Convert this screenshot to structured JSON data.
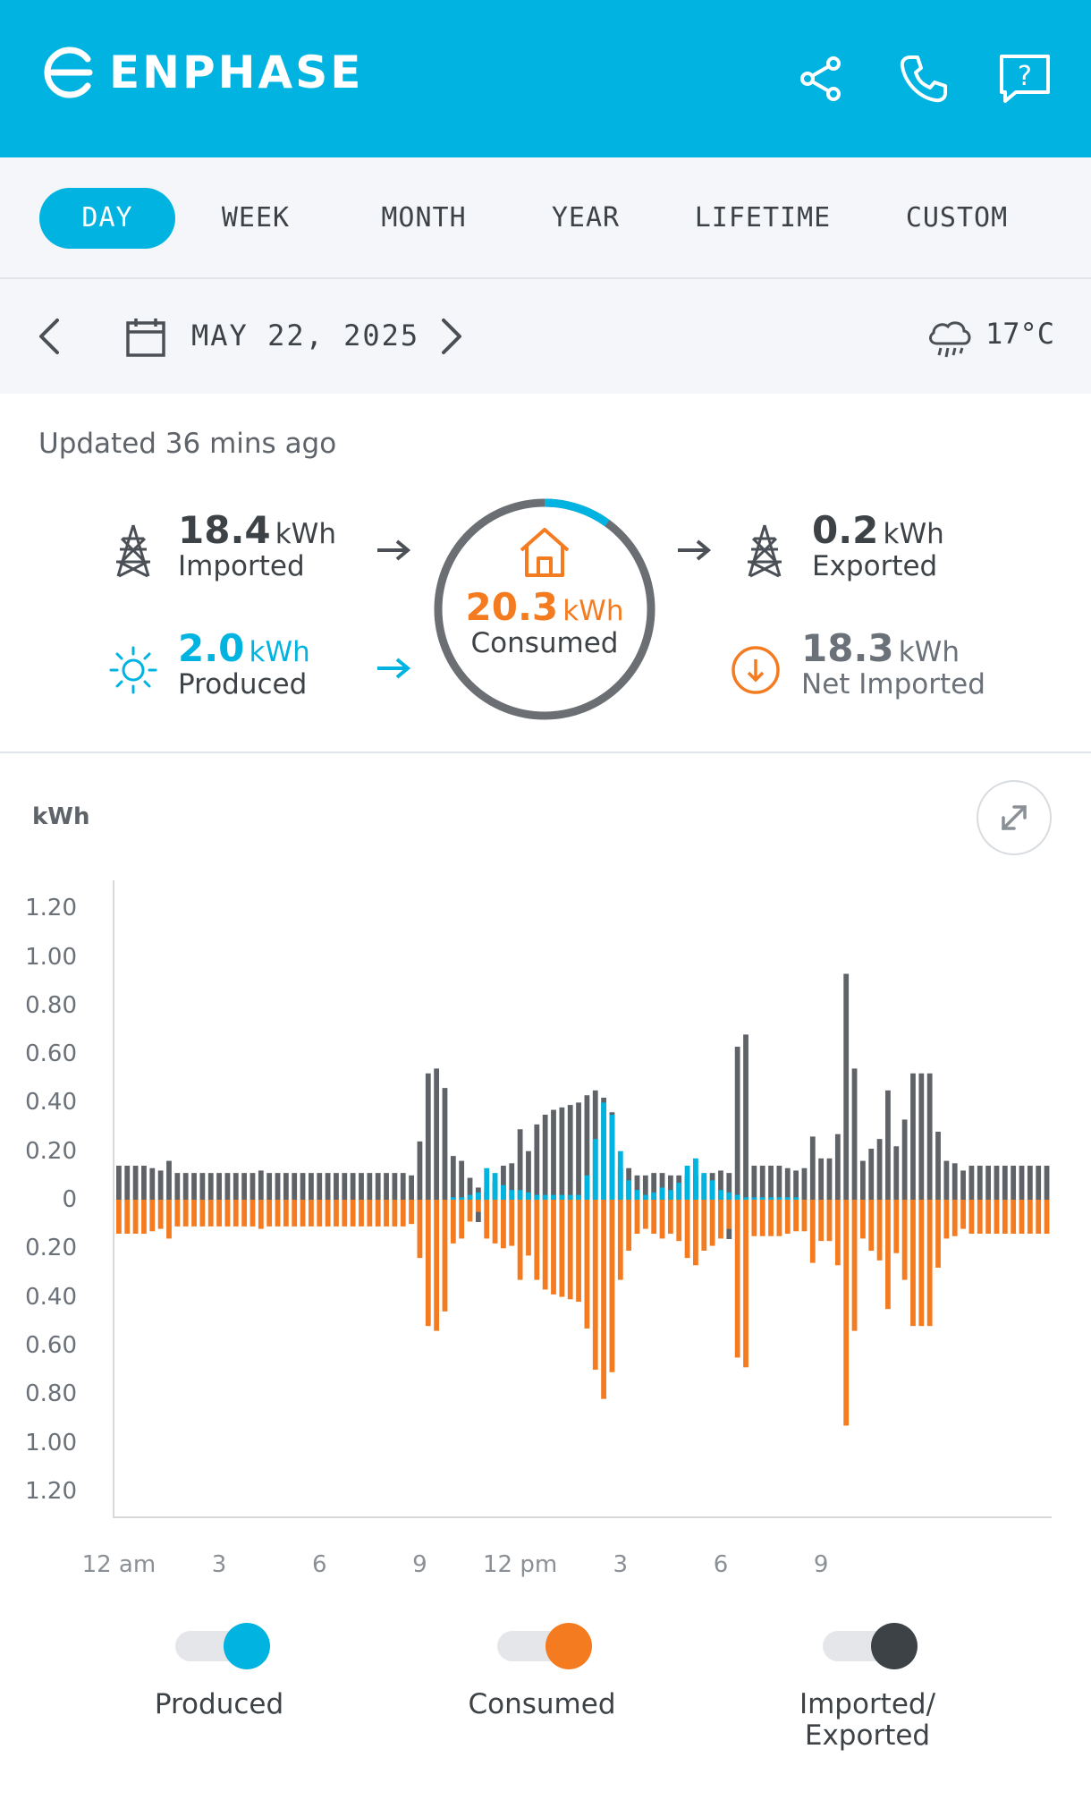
{
  "header": {
    "brand": "ENPHASE"
  },
  "tabs": [
    {
      "label": "DAY",
      "active": true
    },
    {
      "label": "WEEK"
    },
    {
      "label": "MONTH"
    },
    {
      "label": "YEAR"
    },
    {
      "label": "LIFETIME"
    },
    {
      "label": "CUSTOM"
    }
  ],
  "date_row": {
    "date": "MAY 22, 2025",
    "temperature": "17°C",
    "weather_icon": "rain-cloud-icon"
  },
  "summary": {
    "updated": "Updated 36 mins ago",
    "imported": {
      "value": "18.4",
      "unit": "kWh",
      "label": "Imported"
    },
    "produced": {
      "value": "2.0",
      "unit": "kWh",
      "label": "Produced"
    },
    "consumed": {
      "value": "20.3",
      "unit": "kWh",
      "label": "Consumed",
      "solar_fraction": 0.1
    },
    "exported": {
      "value": "0.2",
      "unit": "kWh",
      "label": "Exported"
    },
    "net_imported": {
      "value": "18.3",
      "unit": "kWh",
      "label": "Net Imported"
    }
  },
  "colors": {
    "accent": "#00b3e0",
    "produced": "#00b3e0",
    "consumed": "#f47b20",
    "imported": "#5f6368"
  },
  "chart_data": {
    "type": "bar",
    "ylabel": "kWh",
    "y_ticks_up": [
      "1.20",
      "1.00",
      "0.80",
      "0.60",
      "0.40",
      "0.20",
      "0"
    ],
    "y_ticks_down": [
      "0.20",
      "0.40",
      "0.60",
      "0.80",
      "1.00",
      "1.20"
    ],
    "ylim": [
      -1.2,
      1.2
    ],
    "x_ticks": [
      "12 am",
      "3",
      "6",
      "9",
      "12 pm",
      "3",
      "6",
      "9"
    ],
    "interval_minutes": 15,
    "imported": [
      0.14,
      0.14,
      0.14,
      0.14,
      0.13,
      0.12,
      0.16,
      0.11,
      0.11,
      0.11,
      0.11,
      0.11,
      0.11,
      0.11,
      0.11,
      0.11,
      0.11,
      0.12,
      0.11,
      0.11,
      0.11,
      0.11,
      0.11,
      0.11,
      0.11,
      0.11,
      0.11,
      0.11,
      0.11,
      0.11,
      0.11,
      0.11,
      0.11,
      0.11,
      0.11,
      0.1,
      0.24,
      0.52,
      0.54,
      0.46,
      0.18,
      0.16,
      0.09,
      0.05,
      0.03,
      0.07,
      0.14,
      0.15,
      0.29,
      0.2,
      0.31,
      0.35,
      0.37,
      0.38,
      0.39,
      0.4,
      0.43,
      0.45,
      0.42,
      0.36,
      0.13,
      0.13,
      0.1,
      0.1,
      0.11,
      0.11,
      0.1,
      0.1,
      0.1,
      0.1,
      0.1,
      0.11,
      0.12,
      0.11,
      0.63,
      0.68,
      0.14,
      0.14,
      0.14,
      0.14,
      0.13,
      0.12,
      0.13,
      0.26,
      0.17,
      0.17,
      0.27,
      0.93,
      0.54,
      0.16,
      0.21,
      0.25,
      0.45,
      0.22,
      0.33,
      0.52,
      0.52,
      0.52,
      0.28,
      0.16,
      0.15,
      0.12,
      0.14,
      0.14,
      0.14,
      0.14,
      0.14,
      0.14,
      0.14,
      0.14,
      0.14,
      0.14
    ],
    "exported": [
      0,
      0,
      0,
      0,
      0,
      0,
      0,
      0,
      0,
      0,
      0,
      0,
      0,
      0,
      0,
      0,
      0,
      0,
      0,
      0,
      0,
      0,
      0,
      0,
      0,
      0,
      0,
      0,
      0,
      0,
      0,
      0,
      0,
      0,
      0,
      0,
      0,
      0,
      0,
      0,
      0,
      0,
      0,
      0.02,
      0,
      0,
      0,
      0,
      0,
      0,
      0,
      0,
      0,
      0,
      0,
      0,
      0,
      0,
      0,
      0,
      0,
      0,
      0,
      0,
      0,
      0,
      0,
      0,
      0,
      0,
      0,
      0,
      0,
      0.02,
      0,
      0,
      0,
      0,
      0,
      0,
      0,
      0,
      0,
      0,
      0,
      0,
      0,
      0,
      0,
      0,
      0,
      0,
      0,
      0,
      0,
      0,
      0,
      0,
      0,
      0,
      0,
      0,
      0,
      0,
      0,
      0,
      0,
      0,
      0,
      0,
      0,
      0
    ],
    "produced": [
      0,
      0,
      0,
      0,
      0,
      0,
      0,
      0,
      0,
      0,
      0,
      0,
      0,
      0,
      0,
      0,
      0,
      0,
      0,
      0,
      0,
      0,
      0,
      0,
      0,
      0,
      0,
      0,
      0,
      0,
      0,
      0,
      0,
      0,
      0,
      0,
      0,
      0,
      0,
      0,
      0.01,
      0.01,
      0.02,
      0.03,
      0.13,
      0.11,
      0.06,
      0.04,
      0.04,
      0.03,
      0.02,
      0.02,
      0.02,
      0.02,
      0.02,
      0.02,
      0.1,
      0.25,
      0.4,
      0.35,
      0.2,
      0.08,
      0.04,
      0.02,
      0.03,
      0.05,
      0.04,
      0.07,
      0.14,
      0.17,
      0.11,
      0.08,
      0.04,
      0.03,
      0.02,
      0.01,
      0.01,
      0.01,
      0.01,
      0.01,
      0.01,
      0.01,
      0,
      0,
      0,
      0,
      0,
      0,
      0,
      0,
      0,
      0,
      0,
      0,
      0,
      0,
      0,
      0,
      0,
      0,
      0,
      0,
      0,
      0,
      0,
      0,
      0,
      0,
      0,
      0,
      0,
      0
    ],
    "consumed": [
      0.14,
      0.14,
      0.14,
      0.14,
      0.13,
      0.12,
      0.16,
      0.11,
      0.11,
      0.11,
      0.11,
      0.11,
      0.11,
      0.11,
      0.11,
      0.11,
      0.11,
      0.12,
      0.11,
      0.11,
      0.11,
      0.11,
      0.11,
      0.11,
      0.11,
      0.11,
      0.11,
      0.11,
      0.11,
      0.11,
      0.11,
      0.11,
      0.11,
      0.11,
      0.11,
      0.1,
      0.24,
      0.52,
      0.54,
      0.46,
      0.18,
      0.16,
      0.09,
      0.05,
      0.16,
      0.18,
      0.2,
      0.19,
      0.33,
      0.23,
      0.33,
      0.37,
      0.39,
      0.4,
      0.41,
      0.42,
      0.53,
      0.7,
      0.82,
      0.71,
      0.33,
      0.21,
      0.14,
      0.12,
      0.14,
      0.16,
      0.14,
      0.17,
      0.24,
      0.27,
      0.21,
      0.19,
      0.16,
      0.12,
      0.65,
      0.69,
      0.15,
      0.15,
      0.15,
      0.15,
      0.14,
      0.13,
      0.13,
      0.26,
      0.17,
      0.17,
      0.27,
      0.93,
      0.54,
      0.16,
      0.21,
      0.25,
      0.45,
      0.22,
      0.33,
      0.52,
      0.52,
      0.52,
      0.28,
      0.16,
      0.15,
      0.12,
      0.14,
      0.14,
      0.14,
      0.14,
      0.14,
      0.14,
      0.14,
      0.14,
      0.14,
      0.14
    ]
  },
  "legend": [
    {
      "label": "Produced",
      "color": "#00b3e0"
    },
    {
      "label": "Consumed",
      "color": "#f47b20"
    },
    {
      "label": "Imported/ Exported",
      "color": "#3d4247"
    }
  ]
}
